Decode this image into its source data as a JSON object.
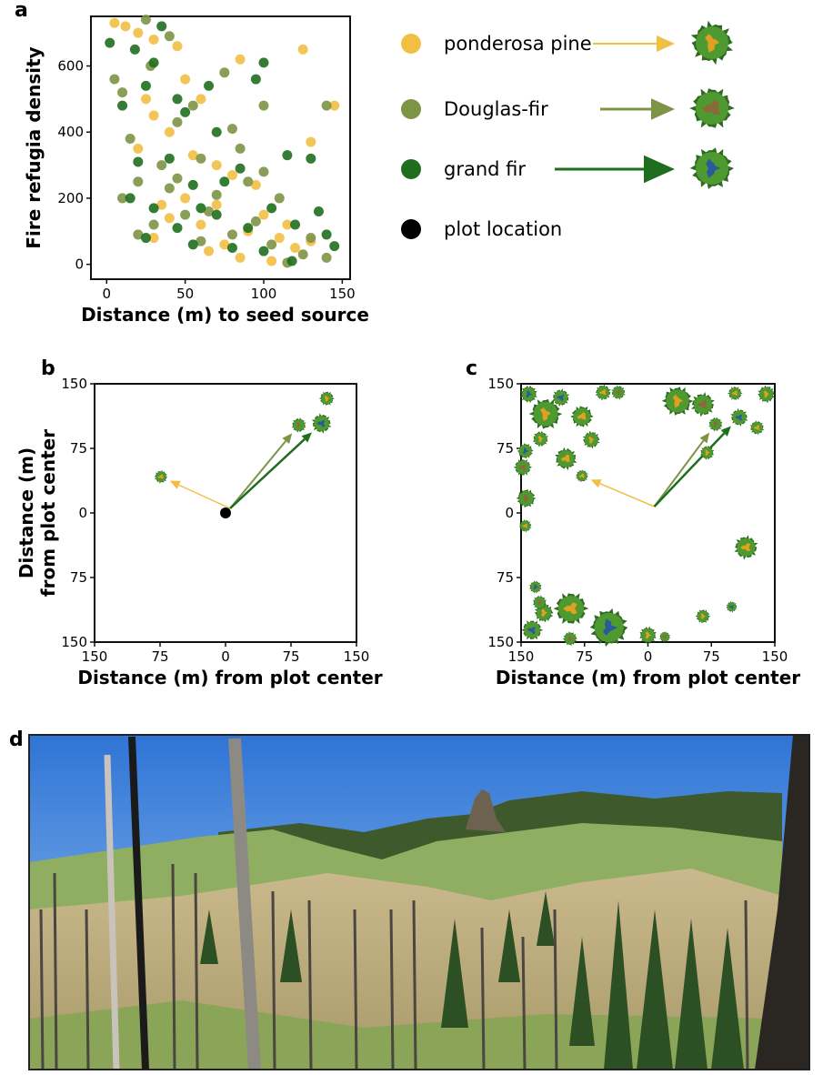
{
  "chart_data": [
    {
      "type": "scatter",
      "label": "a",
      "xlabel": "Distance (m) to seed source",
      "ylabel": "Fire refugia density",
      "xlim": [
        -10,
        155
      ],
      "ylim": [
        -45,
        750
      ],
      "xticks": [
        0,
        50,
        100,
        150
      ],
      "yticks": [
        0,
        200,
        400,
        600
      ],
      "series": [
        {
          "name": "ponderosa pine",
          "color": "#f2bf45",
          "x": [
            5,
            12,
            20,
            30,
            45,
            85,
            145,
            125,
            130,
            50,
            60,
            25,
            30,
            40,
            20,
            55,
            70,
            80,
            95,
            50,
            35,
            70,
            100,
            40,
            60,
            90,
            110,
            75,
            120,
            85,
            105,
            30,
            130,
            65,
            115
          ],
          "y": [
            730,
            720,
            700,
            680,
            660,
            620,
            480,
            650,
            370,
            560,
            500,
            500,
            450,
            400,
            350,
            330,
            300,
            270,
            240,
            200,
            180,
            180,
            150,
            140,
            120,
            100,
            80,
            60,
            50,
            20,
            10,
            80,
            70,
            40,
            120
          ]
        },
        {
          "name": "Douglas-fir",
          "color": "#7d9446",
          "x": [
            25,
            40,
            5,
            10,
            28,
            55,
            75,
            100,
            140,
            80,
            45,
            15,
            35,
            60,
            90,
            20,
            40,
            70,
            110,
            50,
            95,
            30,
            80,
            60,
            105,
            125,
            140,
            115,
            20,
            45,
            85,
            65,
            130,
            10,
            100
          ],
          "y": [
            740,
            690,
            560,
            520,
            600,
            480,
            580,
            480,
            480,
            410,
            430,
            380,
            300,
            320,
            250,
            250,
            230,
            210,
            200,
            150,
            130,
            120,
            90,
            70,
            60,
            30,
            20,
            5,
            90,
            260,
            350,
            160,
            80,
            200,
            280
          ]
        },
        {
          "name": "grand fir",
          "color": "#1f6e1f",
          "x": [
            2,
            18,
            35,
            30,
            10,
            25,
            45,
            65,
            100,
            95,
            50,
            70,
            20,
            40,
            85,
            115,
            130,
            55,
            75,
            15,
            30,
            60,
            105,
            135,
            45,
            70,
            90,
            120,
            25,
            55,
            80,
            100,
            145,
            118,
            140
          ],
          "y": [
            670,
            650,
            720,
            610,
            480,
            540,
            500,
            540,
            610,
            560,
            460,
            400,
            310,
            320,
            290,
            330,
            320,
            240,
            250,
            200,
            170,
            170,
            170,
            160,
            110,
            150,
            110,
            120,
            80,
            60,
            50,
            40,
            55,
            10,
            90
          ]
        }
      ]
    },
    {
      "type": "scatter",
      "label": "b",
      "xlabel": "Distance (m) from plot center",
      "ylabel": [
        "Distance (m)",
        "from plot center"
      ],
      "xlim": [
        -150,
        150
      ],
      "ylim": [
        -150,
        150
      ],
      "xticks": [
        {
          "value": -150,
          "label": "150"
        },
        {
          "value": -75,
          "label": "75"
        },
        0,
        75,
        150
      ],
      "yticks": [
        {
          "value": -150,
          "label": "150"
        },
        {
          "value": -75,
          "label": "75"
        },
        0,
        75,
        150
      ],
      "series": [
        {
          "color": "#e0a020",
          "x": [
            -74,
            116
          ],
          "y": [
            42,
            133
          ],
          "sizes": [
            8,
            9
          ]
        },
        {
          "color": "#8a6a3a",
          "x": [
            84
          ],
          "y": [
            102
          ],
          "sizes": [
            9
          ]
        },
        {
          "color": "#2a5a9a",
          "x": [
            110
          ],
          "y": [
            104
          ],
          "sizes": [
            12
          ]
        },
        {
          "name": "plot location",
          "color": "#000000",
          "x": [
            0
          ],
          "y": [
            0
          ]
        }
      ]
    },
    {
      "type": "scatter",
      "label": "c",
      "xlabel": "Distance (m) from plot center",
      "xlim": [
        -150,
        150
      ],
      "ylim": [
        -150,
        150
      ],
      "xticks": [
        {
          "value": -150,
          "label": "150"
        },
        {
          "value": -75,
          "label": "75"
        },
        0,
        75,
        150
      ],
      "yticks": [
        {
          "value": -150,
          "label": "150"
        },
        {
          "value": -75,
          "label": "75"
        },
        0,
        75,
        150
      ],
      "series": [
        {
          "color": "#e0a020",
          "x": [
            -78,
            -121,
            -78,
            -67,
            -97,
            -127,
            -53,
            35,
            103,
            140,
            129,
            70,
            116,
            65,
            -91,
            -123,
            -145,
            0
          ],
          "y": [
            43,
            115,
            112,
            85,
            63,
            86,
            140,
            130,
            139,
            138,
            99,
            70,
            -40,
            -120,
            -111,
            -116,
            -15,
            -142
          ],
          "sizes": [
            8,
            20,
            14,
            11,
            14,
            10,
            10,
            19,
            9,
            11,
            9,
            9,
            15,
            9,
            21,
            12,
            8,
            11
          ]
        },
        {
          "color": "#8a6a3a",
          "x": [
            80,
            65,
            -144,
            -148,
            -92,
            -35,
            -128,
            20
          ],
          "y": [
            103,
            126,
            17,
            53,
            -146,
            140,
            -104,
            -144
          ],
          "sizes": [
            9,
            15,
            12,
            11,
            9,
            9,
            9,
            7
          ]
        },
        {
          "color": "#2a5a9a",
          "x": [
            108,
            -141,
            -103,
            -46,
            -137,
            -145,
            99,
            -133
          ],
          "y": [
            111,
            138,
            134,
            -133,
            -136,
            72,
            -109,
            -86
          ],
          "sizes": [
            11,
            11,
            11,
            24,
            13,
            10,
            7,
            8
          ]
        }
      ]
    }
  ],
  "photo": {
    "label": "d"
  }
}
